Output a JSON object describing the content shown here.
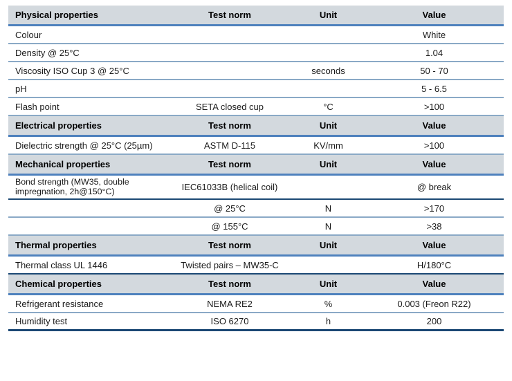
{
  "table": {
    "column_headers": [
      "Test norm",
      "Unit",
      "Value"
    ],
    "colors": {
      "section_header_bg": "#d3d9de",
      "rule_navy": "#1b4874",
      "rule_navy_gradient_top": "#16395f",
      "rule_navy_gradient_bottom": "#4e81bd",
      "rule_light": "#8aa9c6",
      "text": "#1a1a1a"
    },
    "rows": [
      {
        "property": "Physical properties",
        "test_norm": "Test norm",
        "unit": "Unit",
        "value": "Value",
        "kind": "section-header"
      },
      {
        "property": "Colour",
        "test_norm": "",
        "unit": "",
        "value": "White",
        "kind": "data"
      },
      {
        "property": "Density @ 25°C",
        "test_norm": "",
        "unit": "",
        "value": "1.04",
        "kind": "data"
      },
      {
        "property": "Viscosity ISO Cup 3 @ 25°C",
        "test_norm": "",
        "unit": "seconds",
        "value": "50 - 70",
        "kind": "data"
      },
      {
        "property": "pH",
        "test_norm": "",
        "unit": "",
        "value": "5 - 6.5",
        "kind": "data"
      },
      {
        "property": "Flash point",
        "test_norm": "SETA closed cup",
        "unit": "°C",
        "value": ">100",
        "kind": "data"
      },
      {
        "property": "Electrical properties",
        "test_norm": "Test norm",
        "unit": "Unit",
        "value": "Value",
        "kind": "section-header"
      },
      {
        "property": "Dielectric strength @ 25°C (25µm)",
        "test_norm": "ASTM D-115",
        "unit": "KV/mm",
        "value": ">100",
        "kind": "data"
      },
      {
        "property": "Mechanical properties",
        "test_norm": "Test norm",
        "unit": "Unit",
        "value": "Value",
        "kind": "section-header"
      },
      {
        "property": "Bond strength (MW35, double impregnation, 2h@150°C)",
        "test_norm": "IEC61033B (helical coil)",
        "unit": "",
        "value": "@ break",
        "kind": "data"
      },
      {
        "property": "",
        "test_norm": "@ 25°C",
        "unit": "N",
        "value": ">170",
        "kind": "data"
      },
      {
        "property": "",
        "test_norm": "@ 155°C",
        "unit": "N",
        "value": ">38",
        "kind": "data"
      },
      {
        "property": "Thermal properties",
        "test_norm": "Test norm",
        "unit": "Unit",
        "value": "Value",
        "kind": "section-header"
      },
      {
        "property": "Thermal class UL 1446",
        "test_norm": "Twisted pairs – MW35-C",
        "unit": "",
        "value": "H/180°C",
        "kind": "data"
      },
      {
        "property": "Chemical properties",
        "test_norm": "Test norm",
        "unit": "Unit",
        "value": "Value",
        "kind": "section-header"
      },
      {
        "property": "Refrigerant resistance",
        "test_norm": "NEMA RE2",
        "unit": "%",
        "value": "0.003 (Freon R22)",
        "kind": "data"
      },
      {
        "property": "Humidity test",
        "test_norm": "ISO 6270",
        "unit": "h",
        "value": "200",
        "kind": "data"
      }
    ]
  }
}
